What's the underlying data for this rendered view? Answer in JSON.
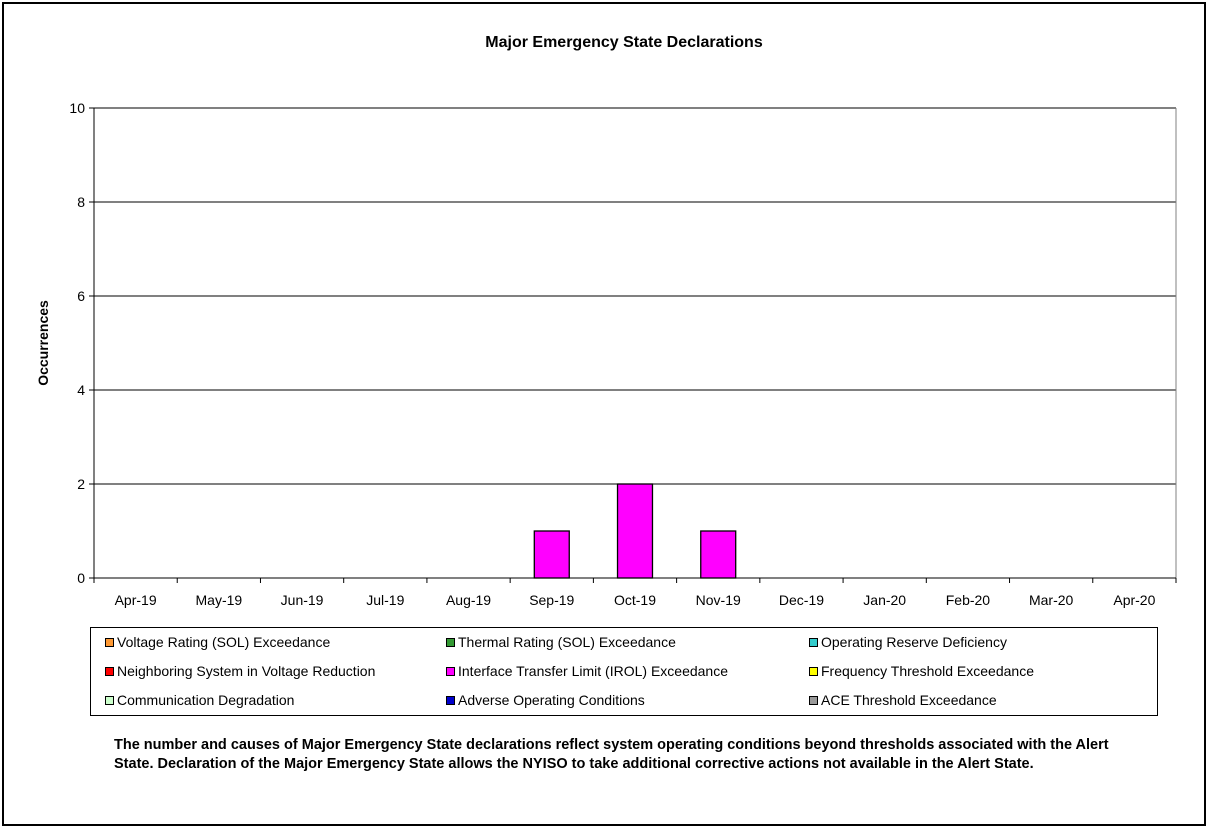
{
  "chart_data": {
    "type": "bar",
    "title": "Major Emergency State Declarations",
    "xlabel": "",
    "ylabel": "Occurrences",
    "ylim": [
      0,
      10
    ],
    "yticks": [
      0,
      2,
      4,
      6,
      8,
      10
    ],
    "grid": true,
    "stacked": true,
    "legend_position": "bottom",
    "categories": [
      "Apr-19",
      "May-19",
      "Jun-19",
      "Jul-19",
      "Aug-19",
      "Sep-19",
      "Oct-19",
      "Nov-19",
      "Dec-19",
      "Jan-20",
      "Feb-20",
      "Mar-20",
      "Apr-20"
    ],
    "series": [
      {
        "name": "Voltage Rating (SOL) Exceedance",
        "color": "#FF9933",
        "values": [
          0,
          0,
          0,
          0,
          0,
          0,
          0,
          0,
          0,
          0,
          0,
          0,
          0
        ]
      },
      {
        "name": "Thermal Rating (SOL) Exceedance",
        "color": "#339933",
        "values": [
          0,
          0,
          0,
          0,
          0,
          0,
          0,
          0,
          0,
          0,
          0,
          0,
          0
        ]
      },
      {
        "name": "Operating Reserve Deficiency",
        "color": "#33CCCC",
        "values": [
          0,
          0,
          0,
          0,
          0,
          0,
          0,
          0,
          0,
          0,
          0,
          0,
          0
        ]
      },
      {
        "name": "Neighboring System in Voltage Reduction",
        "color": "#FF0000",
        "values": [
          0,
          0,
          0,
          0,
          0,
          0,
          0,
          0,
          0,
          0,
          0,
          0,
          0
        ]
      },
      {
        "name": "Interface Transfer Limit (IROL) Exceedance",
        "color": "#FF00FF",
        "values": [
          0,
          0,
          0,
          0,
          0,
          1,
          2,
          1,
          0,
          0,
          0,
          0,
          0
        ]
      },
      {
        "name": "Frequency Threshold Exceedance",
        "color": "#FFFF00",
        "values": [
          0,
          0,
          0,
          0,
          0,
          0,
          0,
          0,
          0,
          0,
          0,
          0,
          0
        ]
      },
      {
        "name": "Communication Degradation",
        "color": "#CCFFCC",
        "values": [
          0,
          0,
          0,
          0,
          0,
          0,
          0,
          0,
          0,
          0,
          0,
          0,
          0
        ]
      },
      {
        "name": "Adverse Operating Conditions",
        "color": "#0000CC",
        "values": [
          0,
          0,
          0,
          0,
          0,
          0,
          0,
          0,
          0,
          0,
          0,
          0,
          0
        ]
      },
      {
        "name": "ACE Threshold Exceedance",
        "color": "#999999",
        "values": [
          0,
          0,
          0,
          0,
          0,
          0,
          0,
          0,
          0,
          0,
          0,
          0,
          0
        ]
      }
    ]
  },
  "caption": "The number and causes of Major Emergency State declarations reflect system operating conditions beyond thresholds associated with the Alert State. Declaration of the Major Emergency State allows the NYISO to take additional corrective actions not available in the Alert State."
}
